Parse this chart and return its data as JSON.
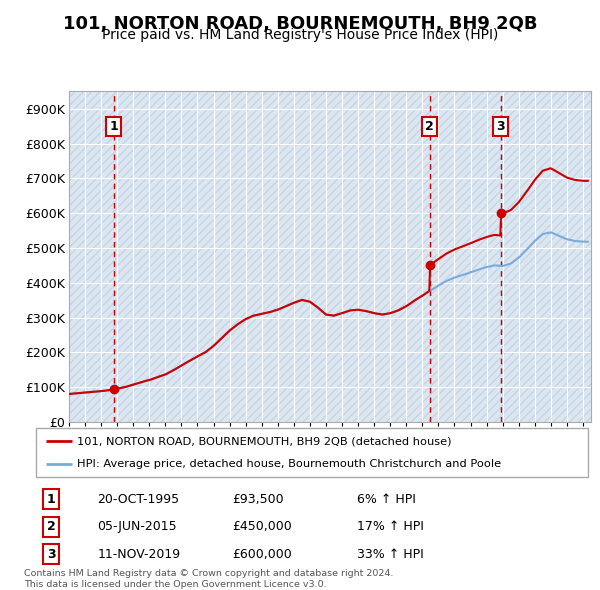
{
  "title": "101, NORTON ROAD, BOURNEMOUTH, BH9 2QB",
  "subtitle": "Price paid vs. HM Land Registry's House Price Index (HPI)",
  "sale_prices": [
    93500,
    450000,
    600000
  ],
  "sale_labels": [
    "1",
    "2",
    "3"
  ],
  "hpi_line_color": "#7aabdb",
  "sale_line_color": "#cc0000",
  "legend_line1": "101, NORTON ROAD, BOURNEMOUTH, BH9 2QB (detached house)",
  "legend_line2": "HPI: Average price, detached house, Bournemouth Christchurch and Poole",
  "table_data": [
    [
      "1",
      "20-OCT-1995",
      "£93,500",
      "6% ↑ HPI"
    ],
    [
      "2",
      "05-JUN-2015",
      "£450,000",
      "17% ↑ HPI"
    ],
    [
      "3",
      "11-NOV-2019",
      "£600,000",
      "33% ↑ HPI"
    ]
  ],
  "footnote": "Contains HM Land Registry data © Crown copyright and database right 2024.\nThis data is licensed under the Open Government Licence v3.0.",
  "ylim": [
    0,
    950000
  ],
  "yticks": [
    0,
    100000,
    200000,
    300000,
    400000,
    500000,
    600000,
    700000,
    800000,
    900000
  ],
  "ytick_labels": [
    "£0",
    "£100K",
    "£200K",
    "£300K",
    "£400K",
    "£500K",
    "£600K",
    "£700K",
    "£800K",
    "£900K"
  ],
  "xlim_start": 1993.0,
  "xlim_end": 2025.5,
  "background_color": "#dce6f1",
  "hatch_edgecolor": "#c5d5e5",
  "grid_color": "#ffffff",
  "title_fontsize": 13,
  "subtitle_fontsize": 10
}
